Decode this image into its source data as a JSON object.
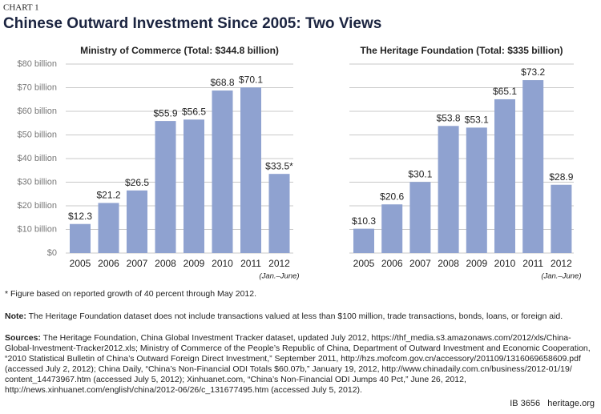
{
  "label": "CHART 1",
  "title": "Chinese Outward Investment Since 2005: Two Views",
  "chart_data": [
    {
      "type": "bar",
      "title": "Ministry of Commerce (Total: $344.8 billion)",
      "categories": [
        "2005",
        "2006",
        "2007",
        "2008",
        "2009",
        "2010",
        "2011",
        "2012"
      ],
      "category_note": "(Jan.–June)",
      "values": [
        12.3,
        21.2,
        26.5,
        55.9,
        56.5,
        68.8,
        70.1,
        33.5
      ],
      "value_labels": [
        "$12.3",
        "$21.2",
        "$26.5",
        "$55.9",
        "$56.5",
        "$68.8",
        "$70.1",
        "$33.5*"
      ],
      "color": "#8fa2d0",
      "ylim": [
        0,
        80
      ],
      "grid": true,
      "yticks": [
        {
          "value": 0,
          "label": "$0"
        },
        {
          "value": 10,
          "label": "$10 billion"
        },
        {
          "value": 20,
          "label": "$20 billion"
        },
        {
          "value": 30,
          "label": "$30 billion"
        },
        {
          "value": 40,
          "label": "$40 billion"
        },
        {
          "value": 50,
          "label": "$50 billion"
        },
        {
          "value": 60,
          "label": "$60 billion"
        },
        {
          "value": 70,
          "label": "$70 billion"
        },
        {
          "value": 80,
          "label": "$80 billion"
        }
      ]
    },
    {
      "type": "bar",
      "title": "The Heritage Foundation (Total: $335 billion)",
      "categories": [
        "2005",
        "2006",
        "2007",
        "2008",
        "2009",
        "2010",
        "2011",
        "2012"
      ],
      "category_note": "(Jan.–June)",
      "values": [
        10.3,
        20.6,
        30.1,
        53.8,
        53.1,
        65.1,
        73.2,
        28.9
      ],
      "value_labels": [
        "$10.3",
        "$20.6",
        "$30.1",
        "$53.8",
        "$53.1",
        "$65.1",
        "$73.2",
        "$28.9"
      ],
      "color": "#8fa2d0",
      "ylim": [
        0,
        80
      ],
      "grid": true
    }
  ],
  "footnote": "* Figure based on reported growth of 40 percent through May 2012.",
  "note_label": "Note:",
  "note": "The Heritage Foundation dataset does not include transactions valued at less than $100 million, trade transactions, bonds, loans, or foreign aid.",
  "sources_label": "Sources:",
  "sources": "The Heritage Foundation, China Global Investment Tracker dataset, updated July 2012, https://thf_media.s3.amazonaws.com/2012/xls/China-Global-Investment-Tracker2012.xls; Ministry of Commerce of the People’s Republic of China, Department of Outward Investment and Economic Cooperation, “2010 Statistical Bulletin of China’s Outward Foreign Direct Investment,” September 2011, http://hzs.mofcom.gov.cn/accessory/201109/1316069658609.pdf (accessed July 2, 2012); China Daily, “China’s Non-Financial ODI Totals $60.07b,” January 19, 2012, http://www.chinadaily.com.cn/business/2012-01/19/ content_14473967.htm (accessed July 5, 2012); Xinhuanet.com, “China’s Non-Financial ODI Jumps 40 Pct,” June 26, 2012, http://news.xinhuanet.com/english/china/2012-06/26/c_131677495.htm (accessed July 5, 2012).",
  "footer_id": "IB 3656",
  "footer_site": "heritage.org"
}
